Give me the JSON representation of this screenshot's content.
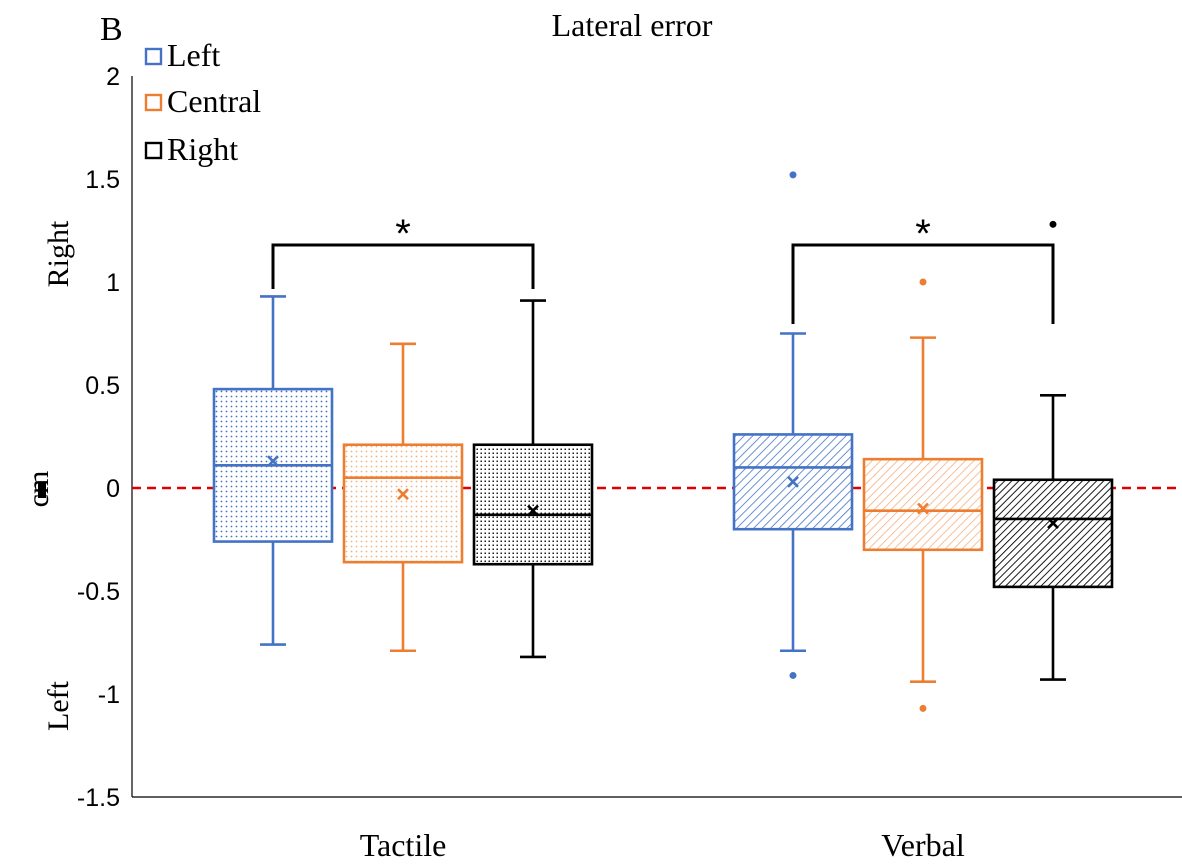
{
  "panel_label": "B",
  "chart_data": {
    "type": "box",
    "title": "Lateral error",
    "ylabel": "cm",
    "ylabel_top": "Right",
    "ylabel_bottom": "Left",
    "ylim": [
      -1.5,
      2
    ],
    "yticks": [
      {
        "value": 2,
        "label": "2"
      },
      {
        "value": 1.5,
        "label": "1.5"
      },
      {
        "value": 1,
        "label": "1"
      },
      {
        "value": 0.5,
        "label": "0.5"
      },
      {
        "value": 0,
        "label": "0"
      },
      {
        "value": -0.5,
        "label": "-0.5"
      },
      {
        "value": -1,
        "label": "-1"
      },
      {
        "value": -1.5,
        "label": "-1.5"
      }
    ],
    "categories": [
      "Tactile",
      "Verbal"
    ],
    "reference_line": 0,
    "legend": {
      "position": "top-left",
      "entries": [
        {
          "name": "Left",
          "color": "#4472c4"
        },
        {
          "name": "Central",
          "color": "#ed7d31"
        },
        {
          "name": "Right",
          "color": "#000000"
        }
      ]
    },
    "series": [
      {
        "name": "Left",
        "color": "#4472c4",
        "boxes": [
          {
            "category": "Tactile",
            "min": -0.76,
            "q1": -0.26,
            "median": 0.11,
            "q3": 0.48,
            "max": 0.93,
            "mean": 0.13,
            "outliers": []
          },
          {
            "category": "Verbal",
            "min": -0.79,
            "q1": -0.2,
            "median": 0.1,
            "q3": 0.26,
            "max": 0.75,
            "mean": 0.03,
            "outliers": [
              1.52,
              -0.91
            ]
          }
        ]
      },
      {
        "name": "Central",
        "color": "#ed7d31",
        "boxes": [
          {
            "category": "Tactile",
            "min": -0.79,
            "q1": -0.36,
            "median": 0.05,
            "q3": 0.21,
            "max": 0.7,
            "mean": -0.03,
            "outliers": []
          },
          {
            "category": "Verbal",
            "min": -0.94,
            "q1": -0.3,
            "median": -0.11,
            "q3": 0.14,
            "max": 0.73,
            "mean": -0.1,
            "outliers": [
              1.0,
              -1.07
            ]
          }
        ]
      },
      {
        "name": "Right",
        "color": "#000000",
        "boxes": [
          {
            "category": "Tactile",
            "min": -0.82,
            "q1": -0.37,
            "median": -0.13,
            "q3": 0.21,
            "max": 0.91,
            "mean": -0.11,
            "outliers": []
          },
          {
            "category": "Verbal",
            "min": -0.93,
            "q1": -0.48,
            "median": -0.15,
            "q3": 0.04,
            "max": 0.45,
            "mean": -0.17,
            "outliers": [
              1.28
            ]
          }
        ]
      }
    ],
    "annotations": [
      {
        "category": "Tactile",
        "from_series": 0,
        "to_series": 2,
        "level": 1.17,
        "label": "*"
      },
      {
        "category": "Verbal",
        "from_series": 0,
        "to_series": 2,
        "level": 1.17,
        "label": "*"
      }
    ]
  }
}
